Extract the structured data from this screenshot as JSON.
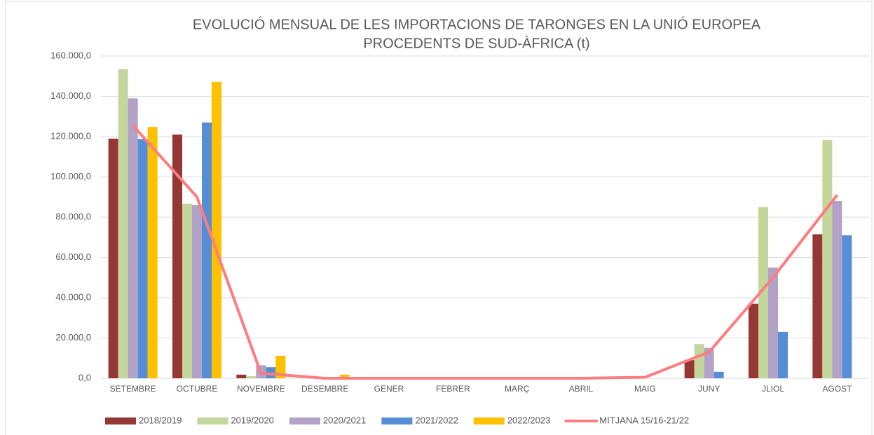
{
  "chart_data": {
    "type": "bar",
    "title": [
      "EVOLUCIÓ MENSUAL DE LES IMPORTACIONS DE TARONGES EN LA UNIÓ EUROPEA",
      "PROCEDENTS DE SUD-ÀFRICA (t)"
    ],
    "categories": [
      "SETEMBRE",
      "OCTUBRE",
      "NOVEMBRE",
      "DESEMBRE",
      "GENER",
      "FEBRER",
      "MARÇ",
      "ABRIL",
      "MAIG",
      "JUNY",
      "JLIOL",
      "AGOST"
    ],
    "series": [
      {
        "name": "2018/2019",
        "type": "bar",
        "color": "#953735",
        "values": [
          119000,
          121000,
          1800,
          0,
          0,
          0,
          0,
          0,
          0,
          9000,
          37000,
          71500
        ]
      },
      {
        "name": "2019/2020",
        "type": "bar",
        "color": "#c3d69b",
        "values": [
          153500,
          86700,
          1000,
          0,
          0,
          0,
          0,
          0,
          0,
          17000,
          85000,
          118200
        ]
      },
      {
        "name": "2020/2021",
        "type": "bar",
        "color": "#b3a2c7",
        "values": [
          139000,
          86000,
          6500,
          0,
          0,
          0,
          0,
          0,
          0,
          15000,
          55000,
          88000
        ]
      },
      {
        "name": "2021/2022",
        "type": "bar",
        "color": "#558ed5",
        "values": [
          118800,
          127000,
          5500,
          0,
          0,
          0,
          0,
          0,
          0,
          3200,
          23000,
          71000
        ]
      },
      {
        "name": "2022/2023",
        "type": "bar",
        "color": "#ffc000",
        "values": [
          124800,
          147200,
          11200,
          1800,
          null,
          null,
          null,
          null,
          null,
          null,
          null,
          null
        ]
      },
      {
        "name": "MITJANA 15/16-21/22",
        "type": "line",
        "color": "#ff7c80",
        "values": [
          125500,
          90000,
          2500,
          0,
          0,
          0,
          0,
          0,
          500,
          13000,
          50000,
          91000
        ]
      }
    ],
    "ylim": [
      0,
      160000
    ],
    "yticks": [
      {
        "value": 0,
        "label": "0,0"
      },
      {
        "value": 20000,
        "label": "20.000,0"
      },
      {
        "value": 40000,
        "label": "40.000,0"
      },
      {
        "value": 60000,
        "label": "60.000,0"
      },
      {
        "value": 80000,
        "label": "80.000,0"
      },
      {
        "value": 100000,
        "label": "100.000,0"
      },
      {
        "value": 120000,
        "label": "120.000,0"
      },
      {
        "value": 140000,
        "label": "140.000,0"
      },
      {
        "value": 160000,
        "label": "160.000,0"
      }
    ],
    "grid": true,
    "legend": "bottom"
  }
}
